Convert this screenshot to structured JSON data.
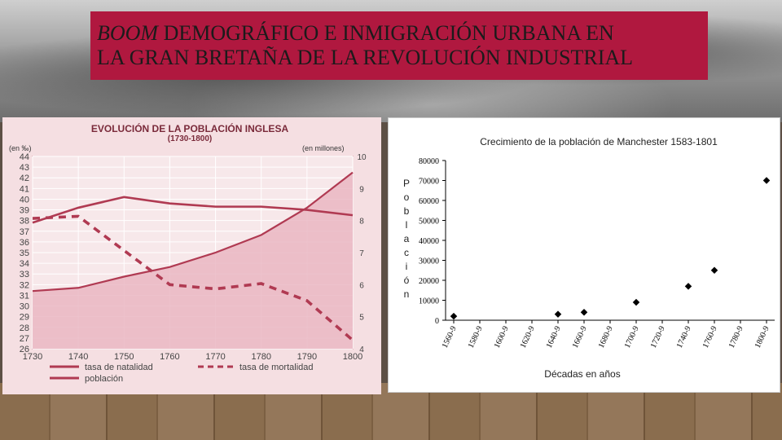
{
  "slide": {
    "title_italic": "BOOM",
    "title_line1_rest": " DEMOGRÁFICO  E INMIGRACIÓN URBANA EN",
    "title_line2": "LA GRAN BRETAÑA DE LA REVOLUCIÓN INDUSTRIAL"
  },
  "chart_data": [
    {
      "type": "line",
      "title": "EVOLUCIÓN DE LA POBLACIÓN INGLESA",
      "subtitle": "(1730-1800)",
      "ylabel_left": "(en ‰)",
      "ylabel_right": "(en millones)",
      "x": [
        1730,
        1740,
        1750,
        1760,
        1770,
        1780,
        1790,
        1800
      ],
      "ylim_left": [
        26,
        44
      ],
      "ylim_right": [
        4,
        10
      ],
      "yticks_left": [
        26,
        27,
        28,
        29,
        30,
        31,
        32,
        33,
        34,
        35,
        36,
        37,
        38,
        39,
        40,
        41,
        42,
        43,
        44
      ],
      "yticks_right": [
        4,
        5,
        6,
        7,
        8,
        9,
        10
      ],
      "series": [
        {
          "name": "tasa de natalidad",
          "axis": "left",
          "style": "solid",
          "color": "#b03a52",
          "values": [
            37.8,
            39.2,
            40.2,
            39.6,
            39.3,
            39.3,
            39.0,
            38.5
          ]
        },
        {
          "name": "tasa de mortalidad",
          "axis": "left",
          "style": "dashed",
          "color": "#b03a52",
          "values": [
            38.2,
            38.4,
            35.2,
            32.0,
            31.6,
            32.1,
            30.5,
            26.8
          ]
        },
        {
          "name": "población",
          "axis": "right",
          "style": "area",
          "color": "#b03a52",
          "values": [
            5.8,
            5.9,
            6.25,
            6.55,
            7.0,
            7.55,
            8.4,
            9.5
          ]
        }
      ],
      "legend": [
        "tasa de natalidad",
        "tasa de mortalidad",
        "población"
      ],
      "legend_placement": "bottom"
    },
    {
      "type": "scatter",
      "title": "Crecimiento de la población de Manchester 1583-1801",
      "xlabel": "Décadas en años",
      "ylabel_letters": [
        "P",
        "o",
        "b",
        "l",
        "a",
        "c",
        "i",
        "ó",
        "n"
      ],
      "ylim": [
        0,
        80000
      ],
      "yticks": [
        0,
        10000,
        20000,
        30000,
        40000,
        50000,
        60000,
        70000,
        80000
      ],
      "categories": [
        "1560-9",
        "1580-9",
        "1600-9",
        "1620-9",
        "1640-9",
        "1660-9",
        "1680-9",
        "1700-9",
        "1720-9",
        "1740-9",
        "1760-9",
        "1780-9",
        "1800-9"
      ],
      "points": [
        {
          "category_index": 0,
          "value": 2000
        },
        {
          "category_index": 4,
          "value": 3000
        },
        {
          "category_index": 5,
          "value": 4000
        },
        {
          "category_index": 7,
          "value": 9000
        },
        {
          "category_index": 9,
          "value": 17000
        },
        {
          "category_index": 10,
          "value": 25000
        },
        {
          "category_index": 12,
          "value": 70000
        }
      ],
      "marker_color": "#000000"
    }
  ]
}
